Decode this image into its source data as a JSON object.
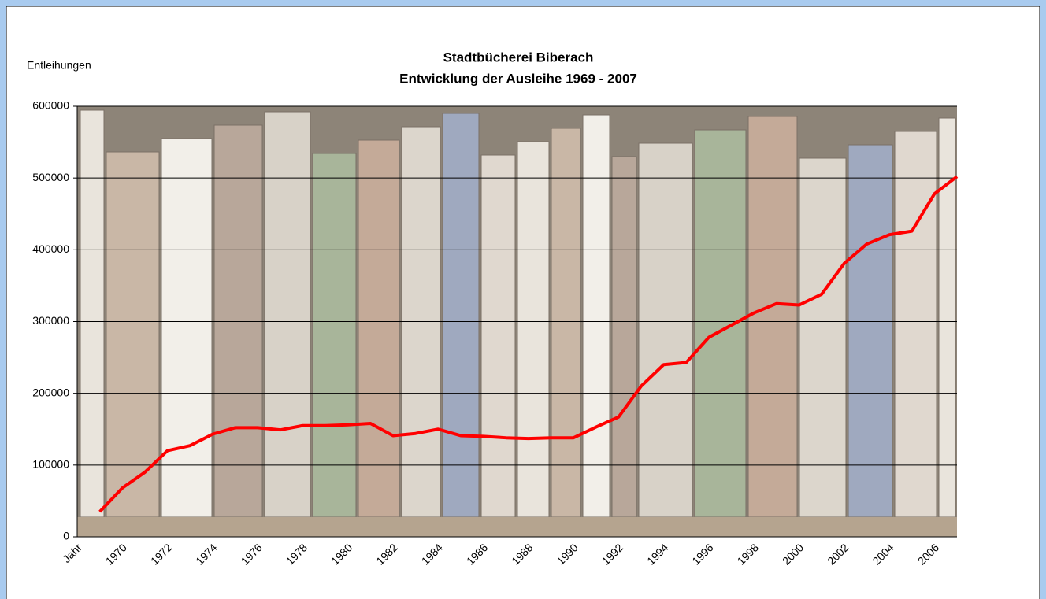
{
  "chart_data": {
    "type": "line",
    "title": "Stadtbücherei Biberach",
    "subtitle": "Entwicklung der Ausleihe 1969 - 2007",
    "y_label": "Entleihungen",
    "categories": [
      "Jahr",
      null,
      "1970",
      null,
      "1972",
      null,
      "1974",
      null,
      "1976",
      null,
      "1978",
      null,
      "1980",
      null,
      "1982",
      null,
      "1984",
      null,
      "1986",
      null,
      "1988",
      null,
      "1990",
      null,
      "1992",
      null,
      "1994",
      null,
      "1996",
      null,
      "1998",
      null,
      "2000",
      null,
      "2002",
      null,
      "2004",
      null,
      "2006",
      null
    ],
    "series": [
      {
        "color": "#ff0000",
        "values": [
          null,
          35000,
          68000,
          90000,
          120000,
          127000,
          143000,
          152000,
          152000,
          149000,
          155000,
          155000,
          156000,
          158000,
          141000,
          144000,
          150000,
          141000,
          140000,
          138000,
          137000,
          138000,
          138000,
          153000,
          167000,
          210000,
          240000,
          243000,
          278000,
          295000,
          312000,
          325000,
          323000,
          338000,
          381000,
          408000,
          421000,
          426000,
          478000,
          502000
        ]
      }
    ],
    "ylim": [
      0,
      600000
    ],
    "yticks": [
      0,
      100000,
      200000,
      300000,
      400000,
      500000,
      600000
    ],
    "grid": true
  }
}
